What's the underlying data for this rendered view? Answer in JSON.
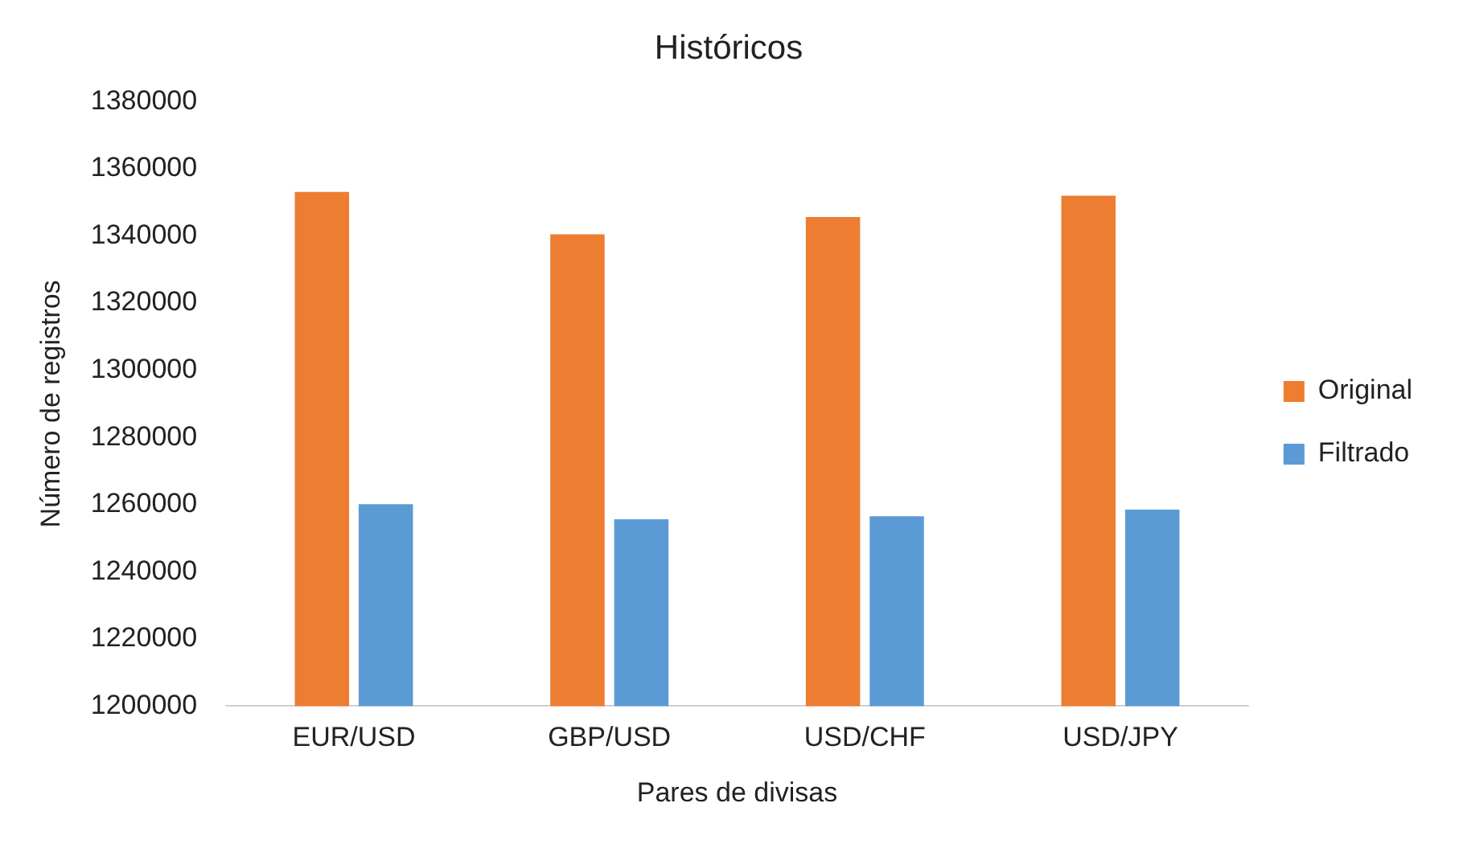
{
  "chart_data": {
    "type": "bar",
    "title": "Históricos",
    "xlabel": "Pares de divisas",
    "ylabel": "Número de registros",
    "categories": [
      "EUR/USD",
      "GBP/USD",
      "USD/CHF",
      "USD/JPY"
    ],
    "series": [
      {
        "name": "Original",
        "color": "#ed7d31",
        "values": [
          1353100,
          1340500,
          1345600,
          1352000
        ]
      },
      {
        "name": "Filtrado",
        "color": "#5b9bd5",
        "values": [
          1260100,
          1255600,
          1256500,
          1258500
        ]
      }
    ],
    "ylim": [
      1200000,
      1380000
    ],
    "yticks": [
      1200000,
      1220000,
      1240000,
      1260000,
      1280000,
      1300000,
      1320000,
      1340000,
      1360000,
      1380000
    ],
    "grid": false,
    "legend": "right"
  }
}
